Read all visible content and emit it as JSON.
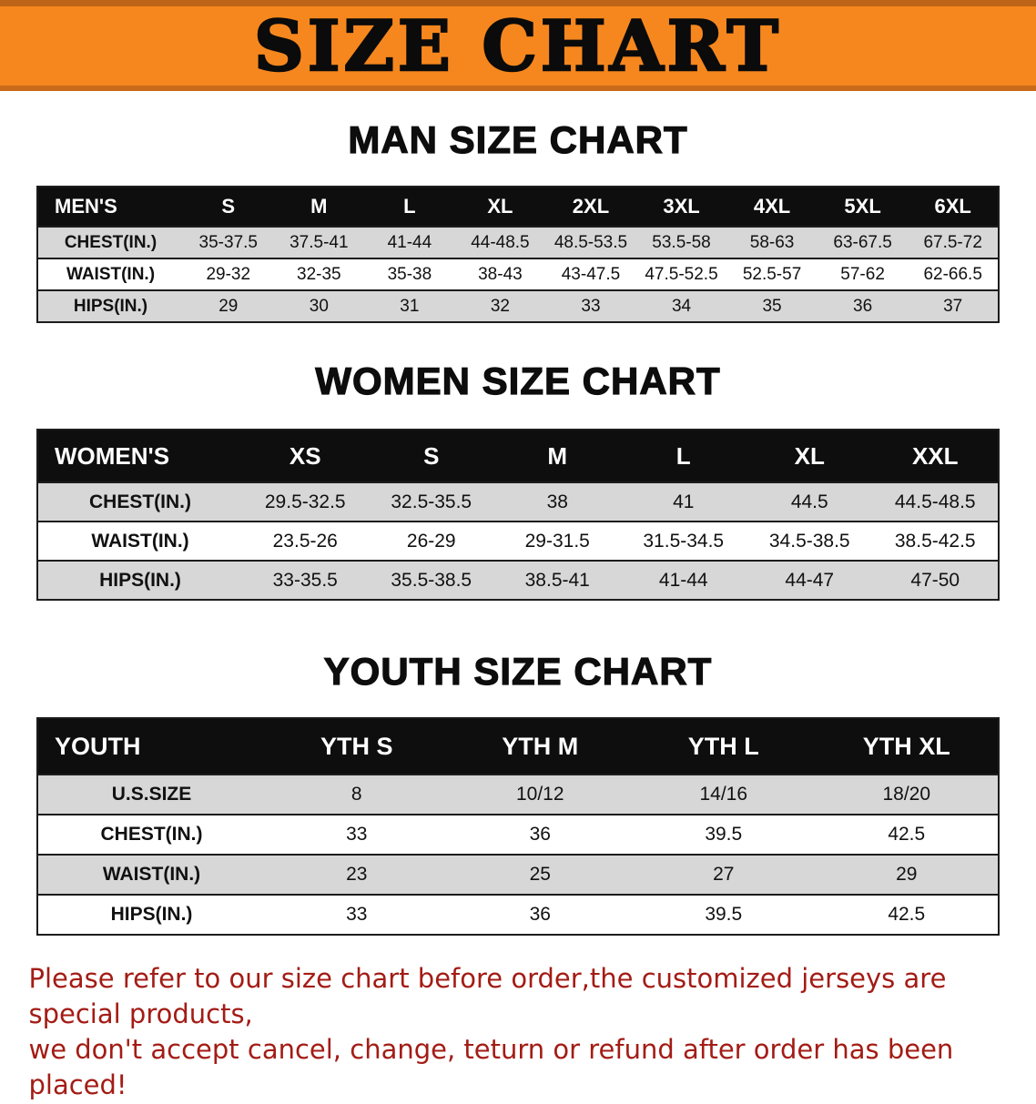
{
  "banner": {
    "title": "SIZE CHART"
  },
  "men": {
    "heading": "MAN SIZE CHART",
    "header": [
      "MEN'S",
      "S",
      "M",
      "L",
      "XL",
      "2XL",
      "3XL",
      "4XL",
      "5XL",
      "6XL"
    ],
    "rows": [
      [
        "CHEST(IN.)",
        "35-37.5",
        "37.5-41",
        "41-44",
        "44-48.5",
        "48.5-53.5",
        "53.5-58",
        "58-63",
        "63-67.5",
        "67.5-72"
      ],
      [
        "WAIST(IN.)",
        "29-32",
        "32-35",
        "35-38",
        "38-43",
        "43-47.5",
        "47.5-52.5",
        "52.5-57",
        "57-62",
        "62-66.5"
      ],
      [
        "HIPS(IN.)",
        "29",
        "30",
        "31",
        "32",
        "33",
        "34",
        "35",
        "36",
        "37"
      ]
    ]
  },
  "women": {
    "heading": "WOMEN SIZE CHART",
    "header": [
      "WOMEN'S",
      "XS",
      "S",
      "M",
      "L",
      "XL",
      "XXL"
    ],
    "rows": [
      [
        "CHEST(IN.)",
        "29.5-32.5",
        "32.5-35.5",
        "38",
        "41",
        "44.5",
        "44.5-48.5"
      ],
      [
        "WAIST(IN.)",
        "23.5-26",
        "26-29",
        "29-31.5",
        "31.5-34.5",
        "34.5-38.5",
        "38.5-42.5"
      ],
      [
        "HIPS(IN.)",
        "33-35.5",
        "35.5-38.5",
        "38.5-41",
        "41-44",
        "44-47",
        "47-50"
      ]
    ]
  },
  "youth": {
    "heading": "YOUTH SIZE CHART",
    "header": [
      "YOUTH",
      "YTH S",
      "YTH M",
      "YTH L",
      "YTH XL"
    ],
    "rows": [
      [
        "U.S.SIZE",
        "8",
        "10/12",
        "14/16",
        "18/20"
      ],
      [
        "CHEST(IN.)",
        "33",
        "36",
        "39.5",
        "42.5"
      ],
      [
        "WAIST(IN.)",
        "23",
        "25",
        "27",
        "29"
      ],
      [
        "HIPS(IN.)",
        "33",
        "36",
        "39.5",
        "42.5"
      ]
    ]
  },
  "footer": {
    "line1": "Please refer to our size chart before order,the customized jerseys are special products,",
    "line2": "we don't accept cancel, change, teturn or refund after order has been placed!"
  },
  "colors": {
    "banner_orange": "#F6871E",
    "table_header_black": "#0E0E0E",
    "row_gray": "#D7D7D7",
    "note_red": "#A31C15"
  }
}
